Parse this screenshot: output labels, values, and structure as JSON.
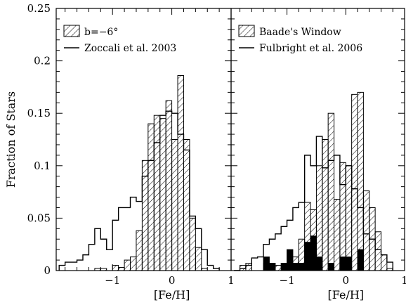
{
  "chart_data": [
    {
      "type": "histogram",
      "ylabel": "Fraction of Stars",
      "xlabel": "[Fe/H]",
      "xlim": [
        -1.95,
        1.0
      ],
      "ylim": [
        0,
        0.25
      ],
      "xticks": [
        -1,
        0,
        1
      ],
      "yticks": [
        "0",
        "0.05",
        "0.1",
        "0.15",
        "0.2",
        "0.25"
      ],
      "yticks_values": [
        0,
        0.05,
        0.1,
        0.15,
        0.2,
        0.25
      ],
      "legend_position": "top-left",
      "legend": [
        {
          "label": "b=−6°",
          "style": "hatched"
        },
        {
          "label": "Zoccali et al. 2003",
          "style": "line"
        }
      ],
      "bin_width": 0.1,
      "series": [
        {
          "name": "b=−6°",
          "style": "hatched",
          "bin_edges_start": -1.3,
          "values": [
            0.002,
            0.002,
            0.0,
            0.005,
            0.003,
            0.01,
            0.013,
            0.038,
            0.105,
            0.14,
            0.148,
            0.145,
            0.162,
            0.125,
            0.186,
            0.125,
            0.05,
            0.022,
            0.002
          ]
        },
        {
          "name": "Zoccali et al. 2003",
          "style": "line",
          "bin_edges_start": -1.9,
          "values": [
            0.005,
            0.008,
            0.008,
            0.01,
            0.015,
            0.025,
            0.04,
            0.03,
            0.02,
            0.048,
            0.06,
            0.06,
            0.07,
            0.066,
            0.09,
            0.105,
            0.122,
            0.148,
            0.152,
            0.15,
            0.13,
            0.115,
            0.052,
            0.04,
            0.02,
            0.005,
            0.002
          ]
        }
      ]
    },
    {
      "type": "histogram",
      "xlabel": "[Fe/H]",
      "xlim": [
        -1.95,
        1.0
      ],
      "ylim": [
        0,
        0.25
      ],
      "xticks": [
        -1,
        0,
        1
      ],
      "legend_position": "top-left",
      "legend": [
        {
          "label": "Baade's Window",
          "style": "hatched"
        },
        {
          "label": "Fulbright et al. 2006",
          "style": "line"
        }
      ],
      "bin_width": 0.1,
      "series": [
        {
          "name": "Baade's Window",
          "style": "hatched",
          "bin_edges_start": -1.8,
          "values": [
            0.005,
            0.007,
            0.0,
            0.0,
            0.007,
            0.007,
            0.005,
            0.0,
            0.007,
            0.013,
            0.03,
            0.065,
            0.058,
            0.1,
            0.125,
            0.15,
            0.068,
            0.103,
            0.1,
            0.168,
            0.17,
            0.076,
            0.06,
            0.037,
            0.015,
            0.002,
            0.0
          ]
        },
        {
          "name": "Fulbright et al. 2006",
          "style": "line",
          "bin_edges_start": -1.9,
          "values": [
            0.0,
            0.002,
            0.005,
            0.012,
            0.013,
            0.025,
            0.03,
            0.035,
            0.042,
            0.048,
            0.06,
            0.065,
            0.11,
            0.1,
            0.128,
            0.098,
            0.105,
            0.11,
            0.082,
            0.1,
            0.078,
            0.06,
            0.035,
            0.03,
            0.02,
            0.015,
            0.008
          ]
        },
        {
          "name": "solid",
          "style": "solid",
          "bin_edges_start": -1.4,
          "values": [
            0.013,
            0.007,
            0.0,
            0.007,
            0.02,
            0.007,
            0.007,
            0.027,
            0.033,
            0.013,
            0.0,
            0.007,
            0.0,
            0.013,
            0.013,
            0.0,
            0.02
          ]
        }
      ]
    }
  ]
}
